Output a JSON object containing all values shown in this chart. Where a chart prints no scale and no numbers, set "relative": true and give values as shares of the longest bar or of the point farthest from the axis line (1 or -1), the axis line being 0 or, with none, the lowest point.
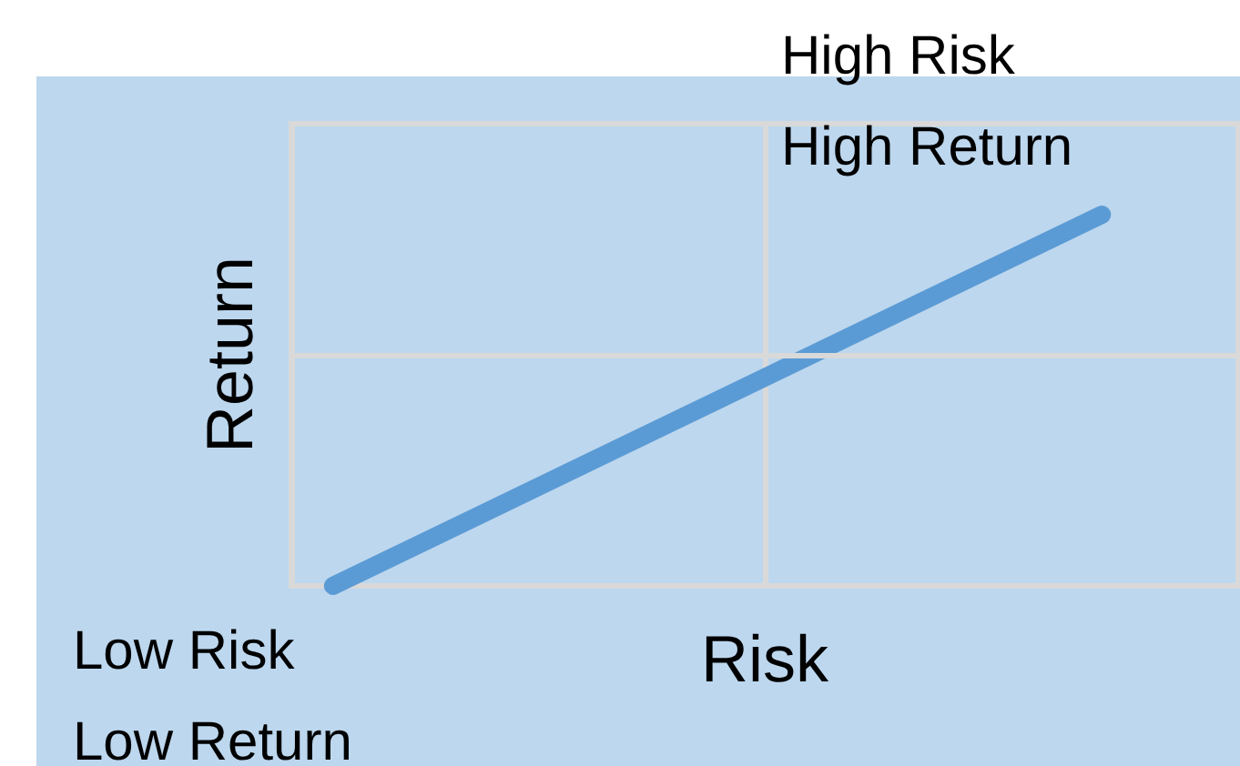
{
  "chart_data": {
    "type": "line",
    "relative": true,
    "xlabel": "Risk",
    "ylabel": "Return",
    "categories": [
      null,
      null
    ],
    "series": [
      {
        "color": "#5b9bd5",
        "values": [
          0,
          1
        ]
      }
    ],
    "ref_lines": [
      {
        "axis": "y",
        "value": 0.62,
        "color": "#d9d9d9"
      }
    ],
    "annotations": [
      "High Risk\nHigh Return",
      "Low Risk\nLow Return"
    ]
  }
}
